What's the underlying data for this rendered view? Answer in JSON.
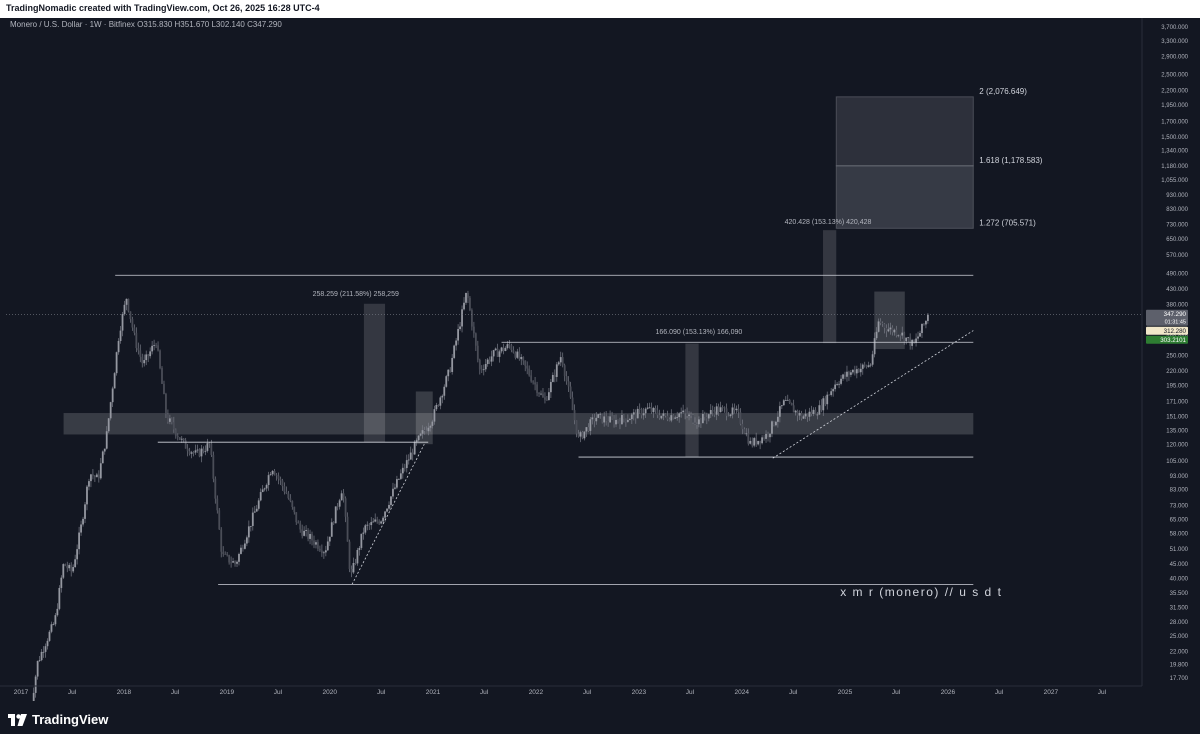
{
  "header": {
    "credit": "TradingNomadic created with TradingView.com, Oct 26, 2025 16:28 UTC-4"
  },
  "symbol_legend": {
    "name": "Monero / U.S. Dollar · 1W · Bitfinex",
    "open": "O315.830",
    "high": "H351.670",
    "low": "L302.140",
    "close": "C347.290"
  },
  "branding": {
    "logo_text": "TradingView"
  },
  "colors": {
    "background": "#131722",
    "candle": "#9598a1",
    "price_tag": "#5d606b",
    "bid_tag": "#f1e7c9",
    "ask_tag": "#2e7d32"
  },
  "chart_data": {
    "type": "candlestick",
    "title": "",
    "y_scale": "log",
    "ylim": [
      16.5,
      3900
    ],
    "y_ticks": [
      "3,700.000",
      "3,300.000",
      "2,900.000",
      "2,500.000",
      "2,200.000",
      "1,950.000",
      "1,700.000",
      "1,500.000",
      "1,340.000",
      "1,180.000",
      "1,055.000",
      "930.000",
      "830.000",
      "730.000",
      "650.000",
      "570.000",
      "490.000",
      "430.000",
      "380.000",
      "330.000",
      "290.000",
      "250.000",
      "220.000",
      "195.000",
      "171.000",
      "151.000",
      "135.000",
      "120.000",
      "105.000",
      "93.000",
      "83.000",
      "73.000",
      "65.000",
      "58.000",
      "51.000",
      "45.000",
      "40.000",
      "35.500",
      "31.500",
      "28.000",
      "25.000",
      "22.000",
      "19.800",
      "17.700"
    ],
    "x_ticks": [
      {
        "label": "2017",
        "date": "2017-01-01"
      },
      {
        "label": "Jul",
        "date": "2017-07-01"
      },
      {
        "label": "2018",
        "date": "2018-01-01"
      },
      {
        "label": "Jul",
        "date": "2018-07-01"
      },
      {
        "label": "2019",
        "date": "2019-01-01"
      },
      {
        "label": "Jul",
        "date": "2019-07-01"
      },
      {
        "label": "2020",
        "date": "2020-01-01"
      },
      {
        "label": "Jul",
        "date": "2020-07-01"
      },
      {
        "label": "2021",
        "date": "2021-01-01"
      },
      {
        "label": "Jul",
        "date": "2021-07-01"
      },
      {
        "label": "2022",
        "date": "2022-01-01"
      },
      {
        "label": "Jul",
        "date": "2022-07-01"
      },
      {
        "label": "2023",
        "date": "2023-01-01"
      },
      {
        "label": "Jul",
        "date": "2023-07-01"
      },
      {
        "label": "2024",
        "date": "2024-01-01"
      },
      {
        "label": "Jul",
        "date": "2024-07-01"
      },
      {
        "label": "2025",
        "date": "2025-01-01"
      },
      {
        "label": "Jul",
        "date": "2025-07-01"
      },
      {
        "label": "2026",
        "date": "2026-01-01"
      },
      {
        "label": "Jul",
        "date": "2026-07-01"
      },
      {
        "label": "2027",
        "date": "2027-01-01"
      },
      {
        "label": "Jul",
        "date": "2027-07-01"
      }
    ],
    "price_path": [
      [
        "2017-02-01",
        13
      ],
      [
        "2017-03-01",
        20
      ],
      [
        "2017-04-01",
        24
      ],
      [
        "2017-05-01",
        28
      ],
      [
        "2017-06-01",
        45
      ],
      [
        "2017-07-01",
        42
      ],
      [
        "2017-08-01",
        60
      ],
      [
        "2017-09-01",
        95
      ],
      [
        "2017-10-01",
        90
      ],
      [
        "2017-11-01",
        130
      ],
      [
        "2017-12-15",
        300
      ],
      [
        "2018-01-10",
        400
      ],
      [
        "2018-02-10",
        280
      ],
      [
        "2018-03-10",
        230
      ],
      [
        "2018-04-25",
        280
      ],
      [
        "2018-06-01",
        150
      ],
      [
        "2018-08-01",
        120
      ],
      [
        "2018-09-15",
        110
      ],
      [
        "2018-11-01",
        120
      ],
      [
        "2018-12-15",
        48
      ],
      [
        "2019-02-01",
        45
      ],
      [
        "2019-04-01",
        65
      ],
      [
        "2019-06-10",
        100
      ],
      [
        "2019-08-01",
        80
      ],
      [
        "2019-09-15",
        60
      ],
      [
        "2019-12-15",
        50
      ],
      [
        "2020-02-15",
        85
      ],
      [
        "2020-03-15",
        40
      ],
      [
        "2020-05-01",
        60
      ],
      [
        "2020-07-01",
        65
      ],
      [
        "2020-09-01",
        90
      ],
      [
        "2020-11-01",
        120
      ],
      [
        "2021-01-01",
        150
      ],
      [
        "2021-03-01",
        220
      ],
      [
        "2021-05-01",
        420
      ],
      [
        "2021-06-15",
        220
      ],
      [
        "2021-08-01",
        250
      ],
      [
        "2021-10-01",
        270
      ],
      [
        "2021-12-01",
        220
      ],
      [
        "2022-02-01",
        170
      ],
      [
        "2022-04-01",
        250
      ],
      [
        "2022-06-01",
        125
      ],
      [
        "2022-08-01",
        150
      ],
      [
        "2022-10-01",
        145
      ],
      [
        "2022-12-01",
        150
      ],
      [
        "2023-02-01",
        160
      ],
      [
        "2023-04-01",
        150
      ],
      [
        "2023-06-01",
        155
      ],
      [
        "2023-08-01",
        145
      ],
      [
        "2023-10-01",
        160
      ],
      [
        "2023-12-15",
        155
      ],
      [
        "2024-02-01",
        120
      ],
      [
        "2024-04-01",
        130
      ],
      [
        "2024-06-01",
        170
      ],
      [
        "2024-08-01",
        150
      ],
      [
        "2024-10-01",
        160
      ],
      [
        "2024-12-01",
        200
      ],
      [
        "2025-02-01",
        220
      ],
      [
        "2025-04-01",
        230
      ],
      [
        "2025-05-01",
        330
      ],
      [
        "2025-06-01",
        310
      ],
      [
        "2025-07-15",
        300
      ],
      [
        "2025-09-01",
        270
      ],
      [
        "2025-10-26",
        347.29
      ]
    ],
    "horizontal_levels": [
      {
        "price": 480,
        "from": "2017-12-01",
        "to": "2026-04-01"
      },
      {
        "price": 277,
        "from": "2021-09-01",
        "to": "2026-04-01"
      },
      {
        "price": 122,
        "from": "2018-05-01",
        "to": "2020-12-15"
      },
      {
        "price": 108,
        "from": "2022-06-01",
        "to": "2026-04-01"
      },
      {
        "price": 38,
        "from": "2018-12-01",
        "to": "2026-04-01"
      }
    ],
    "zones": [
      {
        "from": "2017-06-01",
        "to": "2026-04-01",
        "low": 130,
        "high": 155
      },
      {
        "from": "2020-11-01",
        "to": "2020-12-31",
        "low": 120,
        "high": 185
      },
      {
        "from": "2025-04-15",
        "to": "2025-08-01",
        "low": 262,
        "high": 420
      }
    ],
    "measure_boxes": [
      {
        "from": "2020-05-01",
        "to": "2020-07-15",
        "low": 122,
        "high": 380,
        "label": "258.259 (211.58%) 258,259",
        "label_date": "2019-11-01",
        "label_price": 405
      },
      {
        "from": "2023-06-15",
        "to": "2023-08-01",
        "low": 108,
        "high": 274,
        "label": "166.090 (153.13%) 166,090",
        "label_date": "2023-03-01",
        "label_price": 297
      },
      {
        "from": "2024-10-15",
        "to": "2024-12-01",
        "low": 275,
        "high": 695,
        "label": "420.428 (153.13%) 420,428",
        "label_date": "2024-06-01",
        "label_price": 730
      }
    ],
    "fib_extension": {
      "from": "2024-12-01",
      "to": "2026-04-01",
      "levels": [
        {
          "ratio": "1.272",
          "value": 705.571,
          "label": "1.272 (705.571)"
        },
        {
          "ratio": "1.618",
          "value": 1178.583,
          "label": "1.618 (1,178.583)"
        },
        {
          "ratio": "2",
          "value": 2076.649,
          "label": "2 (2,076.649)"
        }
      ]
    },
    "trendlines": [
      {
        "from": [
          "2020-03-20",
          38
        ],
        "to": [
          "2020-12-01",
          120
        ]
      },
      {
        "from": [
          "2024-04-20",
          107
        ],
        "to": [
          "2026-04-01",
          305
        ]
      }
    ],
    "annotation": "x m r (monero) // u s d t",
    "price_tags": [
      {
        "label": "347.290",
        "sub": "01:31:45",
        "price": 347.29,
        "kind": "last"
      },
      {
        "label": "312.280",
        "price": 312.28,
        "kind": "bid"
      },
      {
        "label": "303.2101",
        "price": 303.21,
        "kind": "ask"
      }
    ]
  }
}
